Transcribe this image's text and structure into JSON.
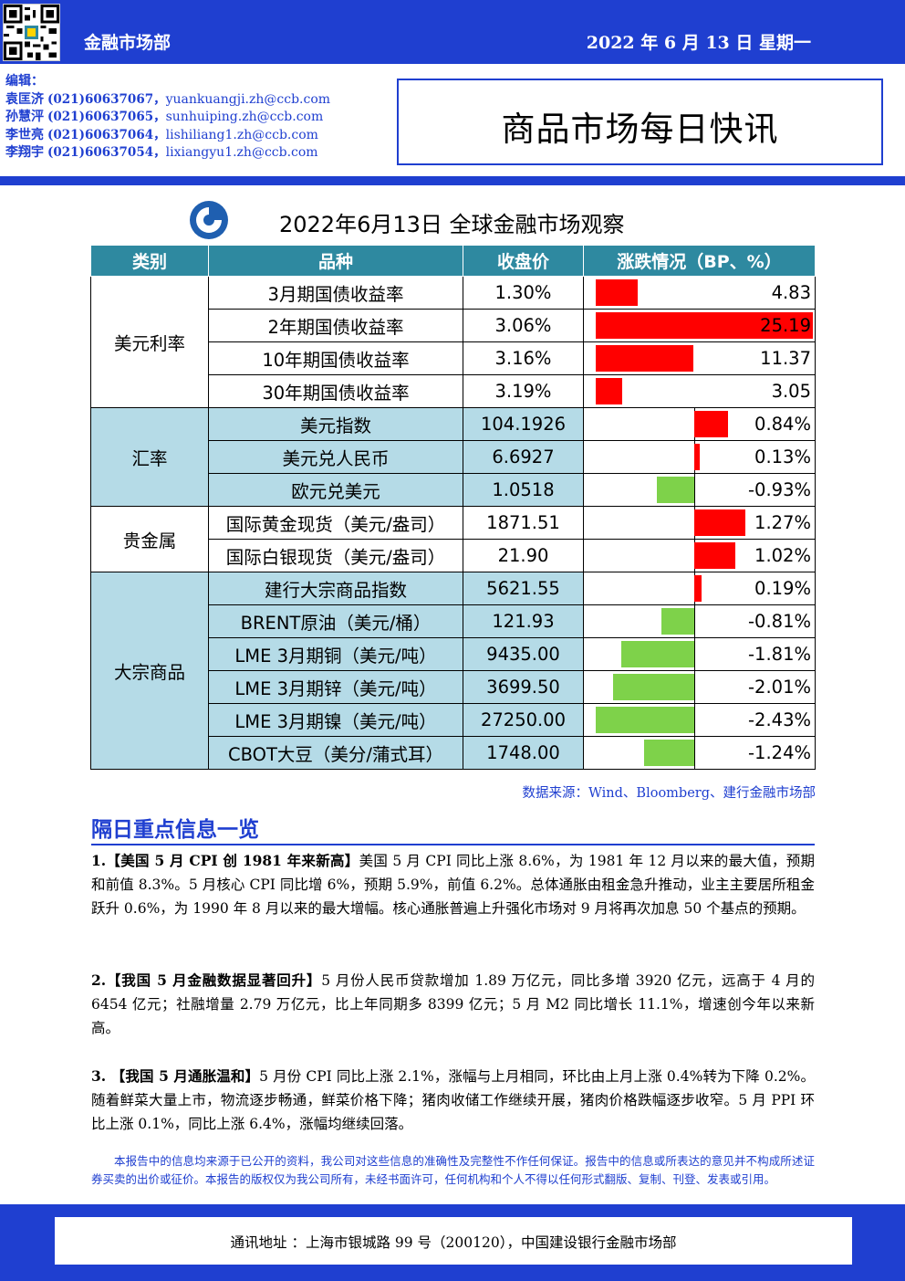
{
  "header": {
    "department": "金融市场部",
    "date": "2022 年 6 月 13 日  星期一"
  },
  "editors": {
    "label": "编辑：",
    "list": [
      {
        "name": "袁匡济",
        "phone": "(021)60637067，",
        "email": "yuankuangji.zh@ccb.com"
      },
      {
        "name": "孙慧泙",
        "phone": "(021)60637065，",
        "email": "sunhuiping.zh@ccb.com"
      },
      {
        "name": "李世亮",
        "phone": "(021)60637064，",
        "email": "lishiliang1.zh@ccb.com"
      },
      {
        "name": "李翔宇",
        "phone": "(021)60637054，",
        "email": "lixiangyu1.zh@ccb.com"
      }
    ]
  },
  "report_title": "商品市场每日快讯",
  "table_title": "2022年6月13日  全球金融市场观察",
  "table": {
    "headers": [
      "类别",
      "品种",
      "收盘价",
      "涨跌情况（BP、%）"
    ],
    "groups": [
      {
        "category": "美元利率",
        "shade": false,
        "rows": [
          {
            "item": "3月期国债收益率",
            "close": "1.30%",
            "change": "4.83",
            "value": 4.83,
            "scale": 25.19
          },
          {
            "item": "2年期国债收益率",
            "close": "3.06%",
            "change": "25.19",
            "value": 25.19,
            "scale": 25.19
          },
          {
            "item": "10年期国债收益率",
            "close": "3.16%",
            "change": "11.37",
            "value": 11.37,
            "scale": 25.19
          },
          {
            "item": "30年期国债收益率",
            "close": "3.19%",
            "change": "3.05",
            "value": 3.05,
            "scale": 25.19
          }
        ]
      },
      {
        "category": "汇率",
        "shade": true,
        "rows": [
          {
            "item": "美元指数",
            "close": "104.1926",
            "change": "0.84%",
            "value": 0.84,
            "scale": 2.43
          },
          {
            "item": "美元兑人民币",
            "close": "6.6927",
            "change": "0.13%",
            "value": 0.13,
            "scale": 2.43
          },
          {
            "item": "欧元兑美元",
            "close": "1.0518",
            "change": "-0.93%",
            "value": -0.93,
            "scale": 2.43
          }
        ]
      },
      {
        "category": "贵金属",
        "shade": false,
        "rows": [
          {
            "item": "国际黄金现货（美元/盎司）",
            "close": "1871.51",
            "change": "1.27%",
            "value": 1.27,
            "scale": 2.43
          },
          {
            "item": "国际白银现货（美元/盎司）",
            "close": "21.90",
            "change": "1.02%",
            "value": 1.02,
            "scale": 2.43
          }
        ]
      },
      {
        "category": "大宗商品",
        "shade": true,
        "rows": [
          {
            "item": "建行大宗商品指数",
            "close": "5621.55",
            "change": "0.19%",
            "value": 0.19,
            "scale": 2.43
          },
          {
            "item": "BRENT原油（美元/桶）",
            "close": "121.93",
            "change": "-0.81%",
            "value": -0.81,
            "scale": 2.43
          },
          {
            "item": "LME 3月期铜（美元/吨）",
            "close": "9435.00",
            "change": "-1.81%",
            "value": -1.81,
            "scale": 2.43
          },
          {
            "item": "LME 3月期锌（美元/吨）",
            "close": "3699.50",
            "change": "-2.01%",
            "value": -2.01,
            "scale": 2.43
          },
          {
            "item": "LME 3月期镍（美元/吨）",
            "close": "27250.00",
            "change": "-2.43%",
            "value": -2.43,
            "scale": 2.43
          },
          {
            "item": "CBOT大豆（美分/蒲式耳）",
            "close": "1748.00",
            "change": "-1.24%",
            "value": -1.24,
            "scale": 2.43
          }
        ]
      }
    ],
    "colors": {
      "up": "#ff0000",
      "down": "#7ed24a",
      "header": "#2e89a0",
      "shade": "#b5dbe7"
    }
  },
  "source": "数据来源：Wind、Bloomberg、建行金融市场部",
  "news": {
    "heading": "隔日重点信息一览",
    "items": [
      {
        "title": "1.【美国 5 月 CPI 创 1981 年来新高】",
        "body": "美国 5 月 CPI 同比上涨 8.6%，为 1981 年 12 月以来的最大值，预期和前值 8.3%。5 月核心 CPI 同比增 6%，预期 5.9%，前值 6.2%。总体通胀由租金急升推动，业主主要居所租金跃升 0.6%，为 1990 年 8 月以来的最大增幅。核心通胀普遍上升强化市场对 9 月将再次加息 50 个基点的预期。"
      },
      {
        "title": "2.【我国 5 月金融数据显著回升】",
        "body": "5 月份人民币贷款增加 1.89 万亿元，同比多增 3920 亿元，远高于 4 月的 6454 亿元；社融增量 2.79 万亿元，比上年同期多 8399 亿元；5 月 M2 同比增长 11.1%，增速创今年以来新高。"
      },
      {
        "title": "3. 【我国 5 月通胀温和】",
        "body": "5 月份 CPI 同比上涨 2.1%，涨幅与上月相同，环比由上月上涨 0.4%转为下降 0.2%。随着鲜菜大量上市，物流逐步畅通，鲜菜价格下降；猪肉收储工作继续开展，猪肉价格跌幅逐步收窄。5 月 PPI 环比上涨 0.1%，同比上涨 6.4%，涨幅均继续回落。"
      }
    ]
  },
  "disclaimer": "本报告中的信息均来源于已公开的资料，我公司对这些信息的准确性及完整性不作任何保证。报告中的信息或所表达的意见并不构成所述证券买卖的出价或征价。本报告的版权仅为我公司所有，未经书面许可，任何机构和个人不得以任何形式翻版、复制、刊登、发表或引用。",
  "footer": {
    "address": "通讯地址 ：上海市银城路 99 号（200120），中国建设银行金融市场部"
  }
}
